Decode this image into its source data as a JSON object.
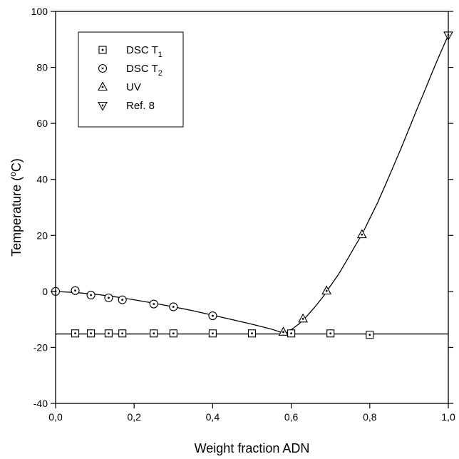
{
  "chart_data": {
    "type": "scatter",
    "xlabel": "Weight fraction ADN",
    "ylabel_main": "Temperature (",
    "ylabel_sup": "o",
    "ylabel_end": "C)",
    "xlim": [
      0,
      1
    ],
    "ylim": [
      -40,
      100
    ],
    "x_ticks": [
      0,
      0.2,
      0.4,
      0.6,
      0.8,
      1.0
    ],
    "x_tick_labels": [
      "0,0",
      "0,2",
      "0,4",
      "0,6",
      "0,8",
      "1,0"
    ],
    "y_ticks": [
      -40,
      -20,
      0,
      20,
      40,
      60,
      80,
      100
    ],
    "y_tick_labels": [
      "-40",
      "-20",
      "0",
      "20",
      "40",
      "60",
      "80",
      "100"
    ],
    "grid": false,
    "legend_position": "top-left",
    "series": [
      {
        "key": "dsc_t1",
        "name": "DSC T",
        "name_sub": "1",
        "marker": "square",
        "x": [
          0.05,
          0.09,
          0.135,
          0.17,
          0.25,
          0.3,
          0.4,
          0.5,
          0.6,
          0.7,
          0.8
        ],
        "y": [
          -15,
          -15,
          -15,
          -15,
          -15,
          -15,
          -15,
          -15,
          -15,
          -15,
          -15.5
        ]
      },
      {
        "key": "dsc_t2",
        "name": "DSC T",
        "name_sub": "2",
        "marker": "circle",
        "x": [
          0.0,
          0.05,
          0.09,
          0.135,
          0.17,
          0.25,
          0.3,
          0.4
        ],
        "y": [
          0,
          0.3,
          -1.3,
          -2.3,
          -3.0,
          -4.5,
          -5.5,
          -8.7
        ]
      },
      {
        "key": "uv",
        "name": "UV",
        "marker": "triangle-up",
        "x": [
          0.58,
          0.63,
          0.69,
          0.78
        ],
        "y": [
          -14.5,
          -9.8,
          0.2,
          20.3
        ]
      },
      {
        "key": "ref8",
        "name": "Ref. 8",
        "marker": "triangle-down",
        "x": [
          1.0
        ],
        "y": [
          91.5
        ]
      }
    ],
    "fit_lines": [
      {
        "key": "horizontal_line",
        "x": [
          0,
          1
        ],
        "y": [
          -15.2,
          -15.2
        ]
      },
      {
        "key": "left_curve",
        "x": [
          0.0,
          0.05,
          0.1,
          0.15,
          0.2,
          0.25,
          0.3,
          0.35,
          0.4,
          0.45,
          0.5,
          0.55,
          0.585
        ],
        "y": [
          0,
          -0.4,
          -1.0,
          -1.9,
          -3.0,
          -4.2,
          -5.5,
          -6.9,
          -8.5,
          -10.1,
          -11.7,
          -13.5,
          -15.1
        ]
      },
      {
        "key": "right_curve",
        "x": [
          0.585,
          0.6,
          0.62,
          0.64,
          0.66,
          0.68,
          0.7,
          0.72,
          0.74,
          0.76,
          0.78,
          0.8,
          0.82,
          0.84,
          0.86,
          0.88,
          0.9,
          0.92,
          0.94,
          0.96,
          0.98,
          1.0
        ],
        "y": [
          -15.1,
          -13.7,
          -11.6,
          -8.8,
          -5.6,
          -2.1,
          2.0,
          6.0,
          10.7,
          15.6,
          20.3,
          26.0,
          31.7,
          38.1,
          44.6,
          51.2,
          58.1,
          65.0,
          71.7,
          78.6,
          85.2,
          91.5
        ]
      }
    ]
  }
}
